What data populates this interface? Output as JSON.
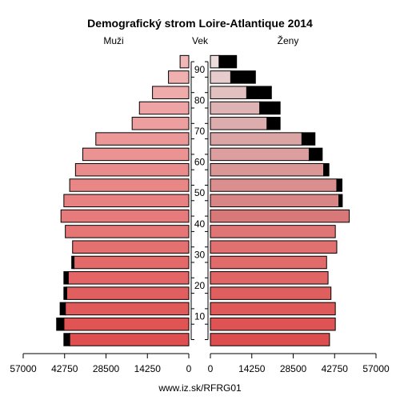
{
  "chart_data": {
    "type": "bar",
    "title": "Demografický strom Loire-Atlantique 2014",
    "left_header": "Muži",
    "center_header": "Vek",
    "right_header": "Ženy",
    "footer": "www.iz.sk/RFRG01",
    "x_max": 57000,
    "x_ticks": [
      57000,
      42750,
      28500,
      14250,
      0
    ],
    "age_ticks": [
      10,
      20,
      30,
      40,
      50,
      60,
      70,
      80,
      90
    ],
    "age_groups": [
      "0-4",
      "5-9",
      "10-14",
      "15-19",
      "20-24",
      "25-29",
      "30-34",
      "35-39",
      "40-44",
      "45-49",
      "50-54",
      "55-59",
      "60-64",
      "65-69",
      "70-74",
      "75-79",
      "80-84",
      "85-89",
      "90+"
    ],
    "colors": {
      "excess": "#000000",
      "outline": "#000000"
    },
    "male_colors": [
      "#df4f4f",
      "#e05454",
      "#e15a5a",
      "#e25f5f",
      "#e36565",
      "#e46a6a",
      "#e57070",
      "#e67676",
      "#e77b7b",
      "#e88181",
      "#e98787",
      "#ea8c8c",
      "#eb9292",
      "#ec9898",
      "#ed9e9e",
      "#eea4a4",
      "#efaaaa",
      "#f0b0b0",
      "#f1b6b6"
    ],
    "female_colors": [
      "#dd4d4d",
      "#de5353",
      "#df5959",
      "#df5f5f",
      "#e06565",
      "#e16a6a",
      "#e17070",
      "#e07575",
      "#d97878",
      "#d98585",
      "#da8e8e",
      "#db9696",
      "#dc9e9e",
      "#dca5a5",
      "#ddacac",
      "#ddb3b3",
      "#e2c0c0",
      "#e6cccc",
      "#ecdcdc"
    ],
    "series": [
      {
        "name": "Muži",
        "values": [
          41000,
          43000,
          42500,
          42000,
          41500,
          39500,
          40000,
          42500,
          44000,
          43000,
          41000,
          39000,
          36500,
          32000,
          19500,
          17000,
          12500,
          7000,
          3000
        ]
      },
      {
        "name": "Ženy",
        "values": [
          41000,
          43000,
          43000,
          41500,
          40500,
          40000,
          43500,
          43000,
          47800,
          44200,
          43500,
          39000,
          34000,
          31500,
          19500,
          17000,
          12500,
          7000,
          3000
        ]
      }
    ],
    "excess": [
      {
        "side": "male",
        "values": [
          2000,
          2500,
          1800,
          1000,
          1500,
          800,
          0,
          0,
          0,
          0,
          0,
          0,
          0,
          0,
          0,
          0,
          0,
          0,
          0
        ]
      },
      {
        "side": "female",
        "values": [
          0,
          0,
          0,
          0,
          0,
          0,
          0,
          0,
          0,
          1200,
          1800,
          1800,
          4500,
          4500,
          4500,
          7000,
          8500,
          8500,
          6000
        ]
      }
    ]
  }
}
